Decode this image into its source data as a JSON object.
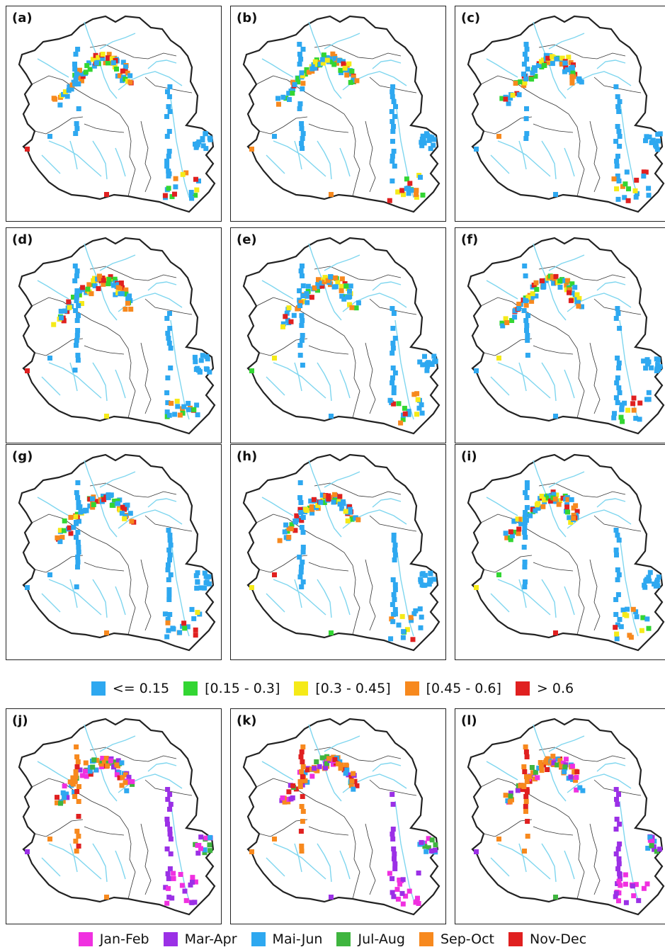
{
  "panels_top": [
    "(a)",
    "(b)",
    "(c)",
    "(d)",
    "(e)",
    "(f)",
    "(g)",
    "(h)",
    "(i)"
  ],
  "panels_bottom": [
    "(j)",
    "(k)",
    "(l)"
  ],
  "legend_values": {
    "items": [
      {
        "label": "<= 0.15",
        "color": "#2ea8f0"
      },
      {
        "label": "[0.15 - 0.3]",
        "color": "#33d633"
      },
      {
        "label": "[0.3 - 0.45]",
        "color": "#f5ea18"
      },
      {
        "label": "[0.45 - 0.6]",
        "color": "#f7891e"
      },
      {
        "label": "> 0.6",
        "color": "#e02020"
      }
    ]
  },
  "legend_months": {
    "items": [
      {
        "label": "Jan-Feb",
        "color": "#f030e0"
      },
      {
        "label": "Mar-Apr",
        "color": "#9b30e6"
      },
      {
        "label": "Mai-Jun",
        "color": "#2ea8f0"
      },
      {
        "label": "Jul-Aug",
        "color": "#3fb53f"
      },
      {
        "label": "Sep-Oct",
        "color": "#f7891e"
      },
      {
        "label": "Nov-Dec",
        "color": "#e02020"
      }
    ]
  },
  "river_color": "#7fd6ef"
}
